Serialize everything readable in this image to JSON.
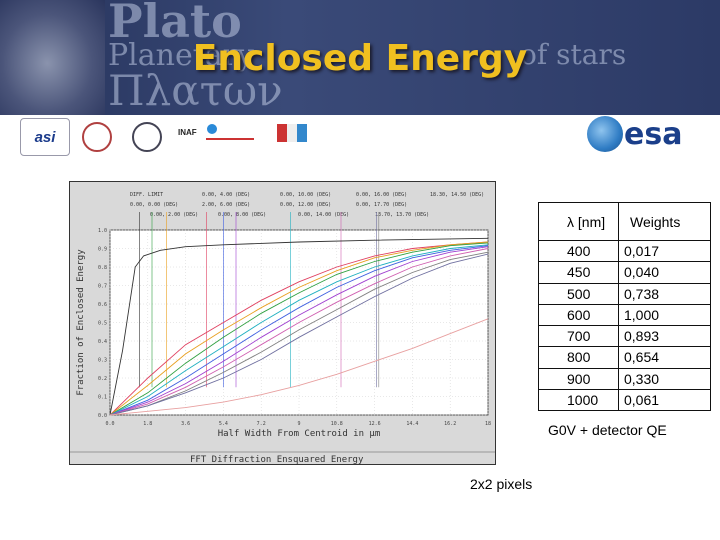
{
  "slide": {
    "title": "Enclosed Energy",
    "banner_words": {
      "plato": "Plato",
      "planetary": "Planetary",
      "stars": "of stars",
      "greek": "Πλατων"
    },
    "logos": {
      "asi": "asi",
      "inaf": "INAF",
      "esa": "esa"
    },
    "caption_star": "G0V + detector QE",
    "caption_pixels": "2x2 pixels",
    "colors": {
      "banner": "#2c3a66",
      "title": "#f0c020",
      "chart_bg": "#d9d9d9"
    }
  },
  "table": {
    "headers": [
      "λ [nm]",
      "Weights"
    ],
    "rows": [
      [
        "400",
        "0,017"
      ],
      [
        "450",
        "0,040"
      ],
      [
        "500",
        "0,738"
      ],
      [
        "600",
        "1,000"
      ],
      [
        "700",
        "0,893"
      ],
      [
        "800",
        "0,654"
      ],
      [
        "900",
        "0,330"
      ],
      [
        "1000",
        "0,061"
      ]
    ]
  },
  "chart_data": {
    "type": "line",
    "title": "FFT Diffraction Ensquared Energy",
    "xlabel": "Half Width From Centroid in µm",
    "ylabel": "Fraction of Enclosed Energy",
    "xlim": [
      0,
      18
    ],
    "ylim": [
      0,
      1
    ],
    "x_ticks": [
      "0.0",
      "1.8",
      "3.6",
      "5.4",
      "7.2",
      "9",
      "10.8",
      "12.6",
      "14.4",
      "16.2",
      "18"
    ],
    "y_ticks": [
      "0.0",
      "0.1",
      "0.2",
      "0.3",
      "0.4",
      "0.5",
      "0.6",
      "0.7",
      "0.8",
      "0.9",
      "1.0"
    ],
    "annotations": [
      "DIFF. LIMIT",
      "0.00, 0.00 (DEG)",
      "0.00, 2.00 (DEG)",
      "0.00, 4.00 (DEG)",
      "2.00, 6.00 (DEG)",
      "0.00, 8.00 (DEG)",
      "0.00, 10.00 (DEG)",
      "0.00, 12.00 (DEG)",
      "0.00, 14.00 (DEG)",
      "0.00, 16.00 (DEG)",
      "0.00, 17.70 (DEG)",
      "13.70, 13.70 (DEG)",
      "18.30, 14.50 (DEG)"
    ],
    "series": [
      {
        "color": "#333333",
        "x": [
          0,
          0.6,
          1.2,
          1.6,
          2.4,
          3.6,
          5.4,
          9,
          12.6,
          18
        ],
        "y": [
          0,
          0.35,
          0.8,
          0.86,
          0.89,
          0.91,
          0.92,
          0.935,
          0.945,
          0.955
        ]
      },
      {
        "color": "#e04060",
        "x": [
          0,
          1.8,
          3.6,
          5.4,
          7.2,
          9,
          10.8,
          12.6,
          14.4,
          16.2,
          18
        ],
        "y": [
          0,
          0.2,
          0.38,
          0.5,
          0.62,
          0.72,
          0.8,
          0.86,
          0.9,
          0.92,
          0.935
        ]
      },
      {
        "color": "#e8a020",
        "x": [
          0,
          1.8,
          3.6,
          5.4,
          7.2,
          9,
          10.8,
          12.6,
          14.4,
          16.2,
          18
        ],
        "y": [
          0,
          0.16,
          0.33,
          0.46,
          0.58,
          0.69,
          0.78,
          0.85,
          0.89,
          0.92,
          0.935
        ]
      },
      {
        "color": "#30a040",
        "x": [
          0,
          1.8,
          3.6,
          5.4,
          7.2,
          9,
          10.8,
          12.6,
          14.4,
          16.2,
          18
        ],
        "y": [
          0,
          0.12,
          0.28,
          0.42,
          0.55,
          0.66,
          0.76,
          0.83,
          0.88,
          0.915,
          0.93
        ]
      },
      {
        "color": "#20b0c0",
        "x": [
          0,
          1.8,
          3.6,
          5.4,
          7.2,
          9,
          10.8,
          12.6,
          14.4,
          16.2,
          18
        ],
        "y": [
          0,
          0.1,
          0.24,
          0.37,
          0.5,
          0.62,
          0.72,
          0.8,
          0.86,
          0.9,
          0.92
        ]
      },
      {
        "color": "#4060e0",
        "x": [
          0,
          1.8,
          3.6,
          5.4,
          7.2,
          9,
          10.8,
          12.6,
          14.4,
          16.2,
          18
        ],
        "y": [
          0,
          0.08,
          0.2,
          0.33,
          0.46,
          0.58,
          0.69,
          0.78,
          0.85,
          0.89,
          0.915
        ]
      },
      {
        "color": "#a040d0",
        "x": [
          0,
          1.8,
          3.6,
          5.4,
          7.2,
          9,
          10.8,
          12.6,
          14.4,
          16.2,
          18
        ],
        "y": [
          0,
          0.07,
          0.17,
          0.29,
          0.42,
          0.54,
          0.65,
          0.75,
          0.83,
          0.88,
          0.91
        ]
      },
      {
        "color": "#d060b0",
        "x": [
          0,
          1.8,
          3.6,
          5.4,
          7.2,
          9,
          10.8,
          12.6,
          14.4,
          16.2,
          18
        ],
        "y": [
          0,
          0.06,
          0.15,
          0.26,
          0.38,
          0.5,
          0.61,
          0.71,
          0.8,
          0.86,
          0.9
        ]
      },
      {
        "color": "#808080",
        "x": [
          0,
          1.8,
          3.6,
          5.4,
          7.2,
          9,
          10.8,
          12.6,
          14.4,
          16.2,
          18
        ],
        "y": [
          0,
          0.05,
          0.13,
          0.23,
          0.34,
          0.46,
          0.57,
          0.68,
          0.77,
          0.84,
          0.88
        ]
      },
      {
        "color": "#7070a0",
        "x": [
          0,
          1.8,
          3.6,
          5.4,
          7.2,
          9,
          10.8,
          12.6,
          14.4,
          16.2,
          18
        ],
        "y": [
          0,
          0.05,
          0.12,
          0.2,
          0.3,
          0.42,
          0.53,
          0.64,
          0.74,
          0.82,
          0.87
        ]
      },
      {
        "color": "#e8a0a0",
        "x": [
          0,
          1.8,
          3.6,
          5.4,
          7.2,
          9,
          10.8,
          12.6,
          14.4,
          16.2,
          18
        ],
        "y": [
          0,
          0.02,
          0.04,
          0.07,
          0.11,
          0.16,
          0.22,
          0.29,
          0.36,
          0.44,
          0.52
        ]
      }
    ]
  }
}
